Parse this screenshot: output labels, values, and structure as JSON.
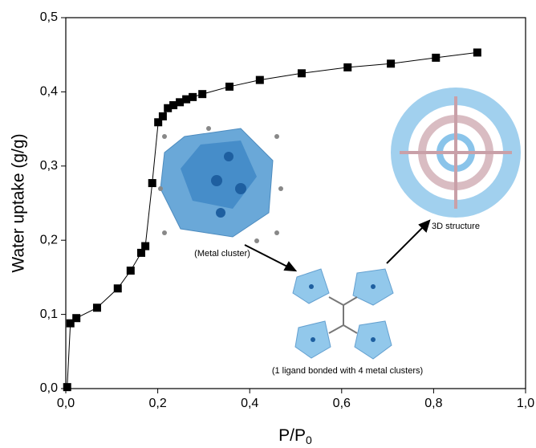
{
  "chart_data": {
    "type": "line",
    "y_label": "Water uptake (g/g)",
    "x_label": "P/P",
    "x_label_subscript": "0",
    "x": [
      0.003,
      0.01,
      0.023,
      0.068,
      0.113,
      0.141,
      0.164,
      0.173,
      0.188,
      0.201,
      0.211,
      0.222,
      0.234,
      0.248,
      0.262,
      0.276,
      0.297,
      0.356,
      0.422,
      0.513,
      0.613,
      0.707,
      0.805,
      0.895
    ],
    "series": [
      {
        "color": "#000000",
        "values": [
          0.002,
          0.088,
          0.095,
          0.109,
          0.135,
          0.159,
          0.183,
          0.192,
          0.277,
          0.359,
          0.367,
          0.378,
          0.382,
          0.386,
          0.39,
          0.393,
          0.397,
          0.407,
          0.416,
          0.425,
          0.433,
          0.438,
          0.446,
          0.453
        ]
      }
    ],
    "xlim": [
      0,
      1.0
    ],
    "ylim": [
      0,
      0.5
    ],
    "xticks": [
      {
        "value": 0,
        "label": "0,0"
      },
      {
        "value": 0.2,
        "label": "0,2"
      },
      {
        "value": 0.4,
        "label": "0,4"
      },
      {
        "value": 0.6,
        "label": "0,6"
      },
      {
        "value": 0.8,
        "label": "0,8"
      },
      {
        "value": 1.0,
        "label": "1,0"
      }
    ],
    "yticks": [
      {
        "value": 0,
        "label": "0,0"
      },
      {
        "value": 0.1,
        "label": "0,1"
      },
      {
        "value": 0.2,
        "label": "0,2"
      },
      {
        "value": 0.3,
        "label": "0,3"
      },
      {
        "value": 0.4,
        "label": "0,4"
      },
      {
        "value": 0.5,
        "label": "0,5"
      }
    ],
    "annotations": [
      "(Metal cluster)",
      "(1 ligand bonded with 4 metal clusters)",
      "3D structure"
    ]
  }
}
